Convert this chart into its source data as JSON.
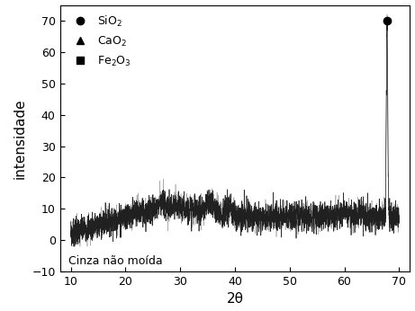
{
  "title": "",
  "xlabel": "2θ",
  "ylabel": "intensidade",
  "xlim": [
    8,
    72
  ],
  "ylim": [
    -10,
    75
  ],
  "xticks": [
    10,
    20,
    30,
    40,
    50,
    60,
    70
  ],
  "yticks": [
    -10,
    0,
    10,
    20,
    30,
    40,
    50,
    60,
    70
  ],
  "annotation": "Cinza não moída",
  "legend_labels": [
    "SiO$_2$",
    "CaO$_2$",
    "Fe$_2$O$_3$"
  ],
  "legend_markers": [
    "o",
    "^",
    "s"
  ],
  "peak_x": 67.8,
  "peak_y": 70,
  "line_color": "#111111",
  "line_color2": "#888888",
  "background_color": "#ffffff"
}
